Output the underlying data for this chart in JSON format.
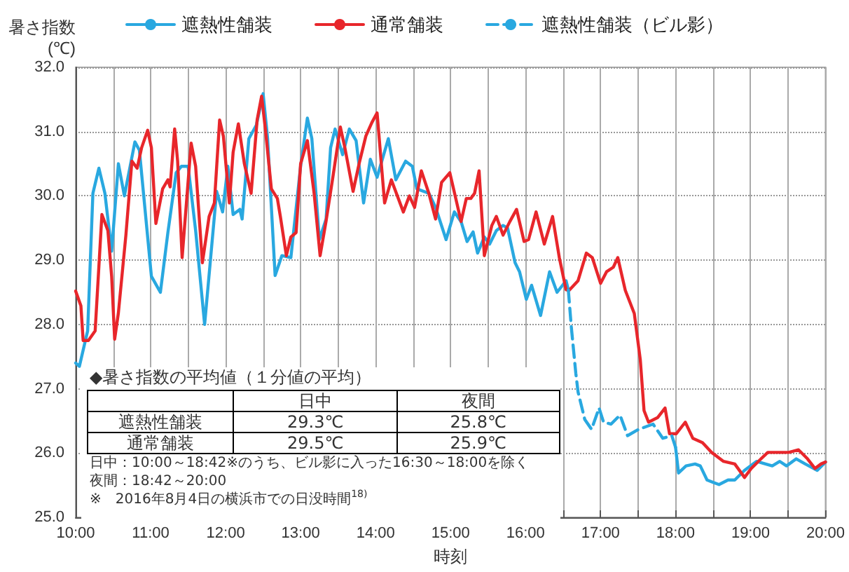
{
  "chart_data": {
    "type": "line",
    "xlabel": "時刻",
    "ylabel": "暑さ指数\n(℃)",
    "xlim": [
      10,
      20
    ],
    "xticks": [
      {
        "value": 10,
        "label": "10:00"
      },
      {
        "value": 10.5,
        "label": null
      },
      {
        "value": 11,
        "label": "11:00"
      },
      {
        "value": 11.5,
        "label": null
      },
      {
        "value": 12,
        "label": "12:00"
      },
      {
        "value": 12.5,
        "label": null
      },
      {
        "value": 13,
        "label": "13:00"
      },
      {
        "value": 13.5,
        "label": null
      },
      {
        "value": 14,
        "label": "14:00"
      },
      {
        "value": 14.5,
        "label": null
      },
      {
        "value": 15,
        "label": "15:00"
      },
      {
        "value": 15.5,
        "label": null
      },
      {
        "value": 16,
        "label": "16:00"
      },
      {
        "value": 16.5,
        "label": null
      },
      {
        "value": 17,
        "label": "17:00"
      },
      {
        "value": 17.5,
        "label": null
      },
      {
        "value": 18,
        "label": "18:00"
      },
      {
        "value": 18.5,
        "label": null
      },
      {
        "value": 19,
        "label": "19:00"
      },
      {
        "value": 19.5,
        "label": null
      },
      {
        "value": 20,
        "label": "20:00"
      }
    ],
    "ylim": [
      25,
      32
    ],
    "yticks": [
      {
        "value": 25,
        "label": "25.0"
      },
      {
        "value": 26,
        "label": "26.0"
      },
      {
        "value": 27,
        "label": "27.0"
      },
      {
        "value": 28,
        "label": "28.0"
      },
      {
        "value": 29,
        "label": "29.0"
      },
      {
        "value": 30,
        "label": "30.0"
      },
      {
        "value": 31,
        "label": "31.0"
      },
      {
        "value": 32,
        "label": "32.0"
      }
    ],
    "grid": true,
    "legend": "top",
    "marker": "none",
    "series": [
      {
        "name": "遮熱性舗装",
        "color": "#29a8e0",
        "line_style": "solid",
        "x": [
          10.0,
          10.05,
          10.1,
          10.16,
          10.23,
          10.31,
          10.39,
          10.48,
          10.57,
          10.65,
          10.79,
          10.85,
          11.01,
          11.13,
          11.23,
          11.34,
          11.41,
          11.5,
          11.6,
          11.72,
          11.88,
          11.96,
          12.03,
          12.1,
          12.19,
          12.22,
          12.31,
          12.41,
          12.5,
          12.56,
          12.66,
          12.75,
          12.87,
          13.0,
          13.09,
          13.15,
          13.25,
          13.34,
          13.4,
          13.46,
          13.56,
          13.65,
          13.74,
          13.84,
          13.93,
          14.02,
          14.17,
          14.27,
          14.4,
          14.49,
          14.55,
          14.71,
          14.8,
          14.94,
          15.05,
          15.14,
          15.22,
          15.3,
          15.36,
          15.45,
          15.52,
          15.61,
          15.7,
          15.76,
          15.86,
          15.92,
          16.01,
          16.08,
          16.2,
          16.32,
          16.42,
          16.54,
          16.57,
          17.0,
          18.0,
          18.04,
          18.14,
          18.26,
          18.33,
          18.42,
          18.58,
          18.7,
          18.79,
          18.92,
          19.08,
          19.2,
          19.29,
          19.39,
          19.48,
          19.61,
          19.73,
          19.89,
          20.0
        ],
        "values": [
          27.4,
          27.35,
          27.6,
          27.9,
          30.04,
          30.43,
          30.04,
          29.14,
          30.5,
          30.0,
          30.84,
          30.71,
          28.75,
          28.5,
          29.43,
          30.36,
          30.46,
          30.46,
          29.46,
          28.0,
          30.07,
          29.75,
          30.46,
          29.71,
          29.79,
          29.64,
          30.89,
          31.1,
          31.59,
          30.89,
          28.76,
          29.07,
          29.04,
          30.46,
          31.21,
          30.89,
          29.32,
          29.64,
          30.75,
          31.04,
          30.64,
          31.04,
          30.86,
          29.89,
          30.57,
          30.29,
          30.89,
          30.25,
          30.54,
          30.46,
          30.11,
          30.04,
          29.82,
          29.32,
          29.75,
          29.6,
          29.29,
          29.44,
          29.11,
          29.36,
          29.25,
          29.46,
          29.54,
          29.5,
          28.96,
          28.82,
          28.39,
          28.61,
          28.14,
          28.82,
          28.5,
          28.68,
          28.54,
          null,
          26.09,
          25.69,
          25.8,
          25.83,
          25.8,
          25.58,
          25.51,
          25.58,
          25.58,
          25.73,
          25.87,
          25.83,
          25.8,
          25.87,
          25.8,
          25.91,
          25.83,
          25.73,
          25.86
        ]
      },
      {
        "name": "通常舗装",
        "color": "#e8262b",
        "line_style": "solid",
        "x": [
          10.0,
          10.07,
          10.1,
          10.17,
          10.26,
          10.35,
          10.43,
          10.48,
          10.52,
          10.57,
          10.67,
          10.75,
          10.82,
          10.88,
          10.96,
          11.01,
          11.07,
          11.16,
          11.23,
          11.26,
          11.32,
          11.36,
          11.42,
          11.54,
          11.6,
          11.69,
          11.78,
          11.85,
          11.92,
          11.97,
          12.05,
          12.1,
          12.17,
          12.25,
          12.34,
          12.42,
          12.48,
          12.53,
          12.61,
          12.69,
          12.73,
          12.81,
          12.87,
          12.94,
          13.0,
          13.09,
          13.18,
          13.26,
          13.34,
          13.43,
          13.53,
          13.59,
          13.7,
          13.78,
          13.87,
          13.95,
          14.02,
          14.12,
          14.21,
          14.37,
          14.45,
          14.52,
          14.61,
          14.71,
          14.8,
          14.88,
          14.99,
          15.14,
          15.21,
          15.27,
          15.32,
          15.38,
          15.45,
          15.55,
          15.61,
          15.7,
          15.79,
          15.88,
          15.98,
          16.04,
          16.14,
          16.25,
          16.36,
          16.45,
          16.54,
          16.58,
          16.7,
          16.81,
          16.89,
          17.0,
          17.08,
          17.17,
          17.23,
          17.33,
          17.45,
          17.53,
          17.58,
          17.64,
          17.76,
          17.86,
          17.92,
          18.01,
          18.13,
          18.23,
          18.36,
          18.48,
          18.64,
          18.79,
          18.92,
          19.01,
          19.14,
          19.23,
          19.36,
          19.51,
          19.64,
          19.76,
          19.86,
          19.94,
          20.0
        ],
        "values": [
          28.52,
          28.29,
          27.75,
          27.75,
          27.9,
          29.71,
          29.46,
          28.75,
          27.77,
          28.18,
          29.39,
          30.54,
          30.43,
          30.75,
          31.02,
          30.75,
          29.57,
          30.11,
          30.25,
          30.14,
          31.04,
          30.54,
          29.04,
          30.82,
          30.46,
          28.96,
          29.68,
          29.89,
          31.18,
          30.93,
          29.89,
          30.68,
          31.12,
          30.5,
          30.04,
          31.18,
          31.55,
          31.04,
          30.11,
          29.96,
          29.68,
          29.07,
          29.36,
          29.43,
          30.5,
          30.86,
          30.04,
          29.07,
          29.61,
          30.29,
          31.07,
          30.75,
          30.07,
          30.5,
          30.93,
          31.14,
          31.29,
          29.89,
          30.25,
          29.75,
          30.0,
          29.82,
          30.39,
          30.04,
          29.64,
          30.21,
          30.36,
          29.6,
          29.96,
          29.96,
          30.04,
          30.39,
          29.07,
          29.54,
          29.68,
          29.39,
          29.6,
          29.79,
          29.29,
          29.32,
          29.75,
          29.25,
          29.68,
          29.04,
          28.54,
          28.53,
          28.68,
          29.11,
          29.04,
          28.64,
          28.82,
          28.89,
          29.04,
          28.53,
          28.17,
          27.45,
          26.66,
          26.48,
          26.55,
          26.7,
          26.3,
          26.3,
          26.48,
          26.23,
          26.16,
          26.01,
          25.87,
          25.83,
          25.62,
          25.76,
          25.91,
          26.01,
          26.01,
          26.01,
          26.05,
          25.91,
          25.76,
          25.83,
          25.86
        ]
      },
      {
        "name": "遮熱性舗装（ビル影）",
        "color": "#29a8e0",
        "line_style": "dashed",
        "x": [
          16.57,
          16.61,
          16.67,
          16.7,
          16.79,
          16.88,
          16.98,
          17.04,
          17.14,
          17.26,
          17.36,
          17.51,
          17.7,
          17.83,
          17.95,
          18.0
        ],
        "values": [
          28.54,
          27.96,
          27.24,
          26.95,
          26.52,
          26.37,
          26.7,
          26.48,
          26.45,
          26.59,
          26.27,
          26.37,
          26.45,
          26.23,
          26.27,
          26.09
        ]
      }
    ],
    "annotations": [
      "◆暑さ指数の平均値（１分値の平均）",
      "日中",
      "夜間",
      "遮熱性舗装",
      "29.3℃",
      "25.8℃",
      "通常舗装",
      "29.5℃",
      "25.9℃",
      "日中：10:00～18:42※のうち、ビル影に入った16:30～18:00を除く",
      "夜間：18:42～20:00",
      "※　2016年8月4日の横浜市での日没時間$^{18)}$"
    ]
  }
}
